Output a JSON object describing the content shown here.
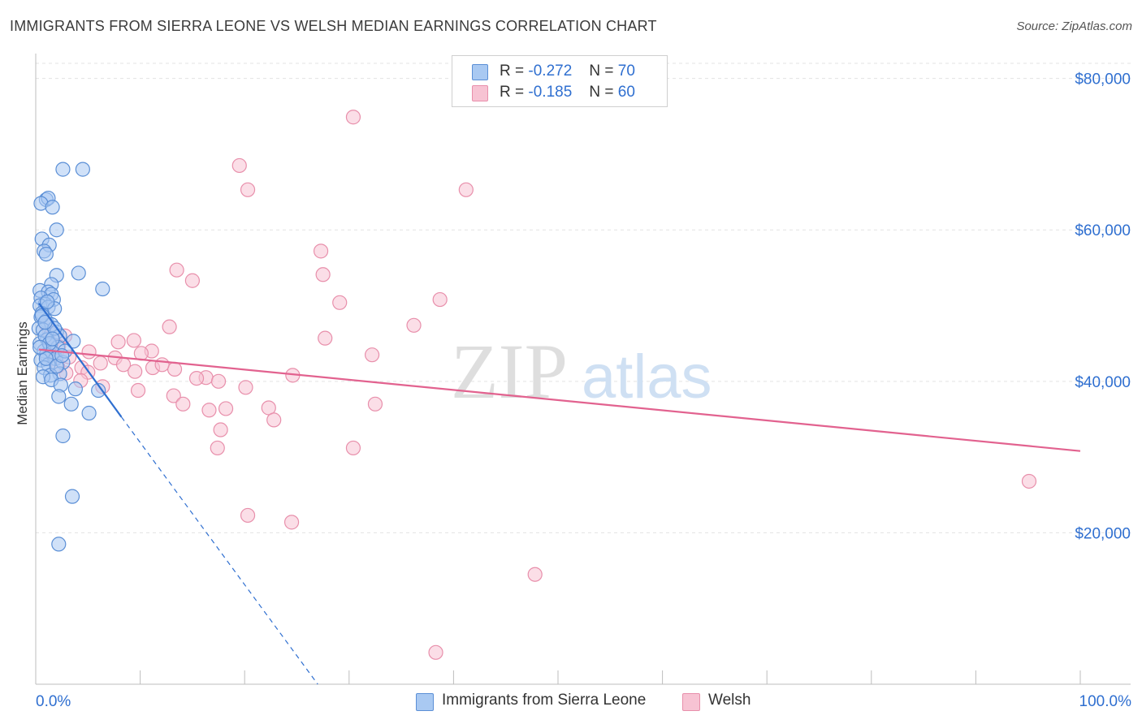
{
  "title": "IMMIGRANTS FROM SIERRA LEONE VS WELSH MEDIAN EARNINGS CORRELATION CHART",
  "source": "Source: ZipAtlas.com",
  "watermark": {
    "zip": "ZIP",
    "atlas": "atlas"
  },
  "legend": {
    "r_label": "R =",
    "n_label": "N =",
    "series": [
      {
        "r": "-0.272",
        "n": "70"
      },
      {
        "r": "-0.185",
        "n": "60"
      }
    ]
  },
  "colors": {
    "blue_fill": "#a9c9f2",
    "blue_stroke": "#5b8fd6",
    "blue_line": "#2f6fd0",
    "pink_fill": "#f7c3d3",
    "pink_stroke": "#e88fab",
    "pink_line": "#e2628f",
    "axis_label": "#2f6fd0",
    "grid": "#e3e3e3"
  },
  "chart_data": {
    "type": "scatter",
    "title": "IMMIGRANTS FROM SIERRA LEONE VS WELSH MEDIAN EARNINGS CORRELATION CHART",
    "xlabel": "",
    "ylabel": "Median Earnings",
    "xlim": [
      0,
      100
    ],
    "ylim": [
      0,
      82000
    ],
    "x_tick_labels": [
      "0.0%",
      "100.0%"
    ],
    "y_ticks": [
      20000,
      40000,
      60000,
      80000
    ],
    "y_tick_labels": [
      "$20,000",
      "$40,000",
      "$60,000",
      "$80,000"
    ],
    "grid": true,
    "legend_position": "top-center",
    "series": [
      {
        "name": "Immigrants from Sierra Leone",
        "color": "#5b8fd6",
        "points": [
          [
            4.5,
            68000
          ],
          [
            2.6,
            68000
          ],
          [
            1.0,
            64000
          ],
          [
            1.2,
            64200
          ],
          [
            0.5,
            63500
          ],
          [
            1.6,
            63000
          ],
          [
            2.0,
            60000
          ],
          [
            0.6,
            58800
          ],
          [
            1.3,
            58000
          ],
          [
            0.8,
            57200
          ],
          [
            1.0,
            56800
          ],
          [
            4.1,
            54300
          ],
          [
            2.0,
            54000
          ],
          [
            1.5,
            52800
          ],
          [
            6.4,
            52200
          ],
          [
            0.4,
            52000
          ],
          [
            1.2,
            51800
          ],
          [
            1.5,
            51500
          ],
          [
            0.5,
            51000
          ],
          [
            1.7,
            50800
          ],
          [
            0.9,
            50200
          ],
          [
            0.4,
            50000
          ],
          [
            1.2,
            49800
          ],
          [
            1.8,
            49600
          ],
          [
            0.6,
            49000
          ],
          [
            0.5,
            48500
          ],
          [
            1.0,
            48000
          ],
          [
            1.5,
            47500
          ],
          [
            0.3,
            47000
          ],
          [
            2.0,
            46500
          ],
          [
            2.3,
            46000
          ],
          [
            0.7,
            46800
          ],
          [
            1.1,
            45500
          ],
          [
            3.6,
            45300
          ],
          [
            0.4,
            45000
          ],
          [
            1.4,
            44800
          ],
          [
            2.1,
            44500
          ],
          [
            0.8,
            44000
          ],
          [
            1.6,
            43800
          ],
          [
            1.0,
            43500
          ],
          [
            1.9,
            43000
          ],
          [
            0.5,
            42800
          ],
          [
            2.6,
            42500
          ],
          [
            1.2,
            42200
          ],
          [
            0.8,
            41800
          ],
          [
            2.3,
            41000
          ],
          [
            1.4,
            40800
          ],
          [
            0.7,
            40600
          ],
          [
            1.5,
            40200
          ],
          [
            2.4,
            39500
          ],
          [
            3.8,
            39000
          ],
          [
            6.0,
            38800
          ],
          [
            2.2,
            38000
          ],
          [
            3.4,
            37000
          ],
          [
            5.1,
            35800
          ],
          [
            2.6,
            32800
          ],
          [
            3.5,
            24800
          ],
          [
            2.2,
            18500
          ],
          [
            0.9,
            46000
          ],
          [
            1.3,
            45000
          ],
          [
            1.0,
            43000
          ],
          [
            2.0,
            42000
          ],
          [
            0.6,
            48700
          ],
          [
            1.8,
            47000
          ],
          [
            2.8,
            44000
          ],
          [
            0.4,
            44500
          ],
          [
            1.1,
            50500
          ],
          [
            0.9,
            47800
          ],
          [
            1.6,
            45600
          ],
          [
            2.5,
            43400
          ]
        ],
        "trend_solid": [
          [
            0.3,
            50300
          ],
          [
            8.2,
            35300
          ]
        ],
        "trend_dashed": [
          [
            8.2,
            35300
          ],
          [
            27.0,
            0
          ]
        ]
      },
      {
        "name": "Welsh",
        "color": "#e88fab",
        "points": [
          [
            30.4,
            74900
          ],
          [
            19.5,
            68500
          ],
          [
            20.3,
            65300
          ],
          [
            41.2,
            65300
          ],
          [
            27.3,
            57200
          ],
          [
            13.5,
            54700
          ],
          [
            15.0,
            53300
          ],
          [
            27.5,
            54100
          ],
          [
            29.1,
            50400
          ],
          [
            38.7,
            50800
          ],
          [
            12.8,
            47200
          ],
          [
            36.2,
            47400
          ],
          [
            27.7,
            45700
          ],
          [
            1.0,
            47500
          ],
          [
            1.3,
            46500
          ],
          [
            2.8,
            46000
          ],
          [
            9.4,
            45400
          ],
          [
            7.9,
            45200
          ],
          [
            1.5,
            45000
          ],
          [
            2.2,
            44600
          ],
          [
            11.1,
            44000
          ],
          [
            5.1,
            43900
          ],
          [
            32.2,
            43500
          ],
          [
            10.1,
            43700
          ],
          [
            1.7,
            43000
          ],
          [
            7.6,
            43100
          ],
          [
            6.2,
            42400
          ],
          [
            8.4,
            42200
          ],
          [
            11.2,
            41800
          ],
          [
            4.4,
            41800
          ],
          [
            5.0,
            41200
          ],
          [
            13.3,
            41600
          ],
          [
            12.1,
            42200
          ],
          [
            9.5,
            41300
          ],
          [
            16.3,
            40500
          ],
          [
            15.4,
            40400
          ],
          [
            24.6,
            40800
          ],
          [
            4.3,
            40100
          ],
          [
            17.5,
            40000
          ],
          [
            2.9,
            41100
          ],
          [
            6.4,
            39300
          ],
          [
            20.1,
            39200
          ],
          [
            9.8,
            38800
          ],
          [
            13.2,
            38100
          ],
          [
            14.1,
            37000
          ],
          [
            16.6,
            36200
          ],
          [
            18.2,
            36400
          ],
          [
            22.3,
            36500
          ],
          [
            32.5,
            37000
          ],
          [
            22.8,
            34900
          ],
          [
            17.7,
            33600
          ],
          [
            17.4,
            31200
          ],
          [
            30.4,
            31200
          ],
          [
            20.3,
            22300
          ],
          [
            24.5,
            21400
          ],
          [
            95.1,
            26800
          ],
          [
            47.8,
            14500
          ],
          [
            38.3,
            4200
          ],
          [
            3.2,
            43200
          ],
          [
            2.1,
            42000
          ]
        ],
        "trend": [
          [
            0.3,
            44200
          ],
          [
            100,
            30800
          ]
        ]
      }
    ]
  },
  "bottom_legend": [
    {
      "label": "Immigrants from Sierra Leone"
    },
    {
      "label": "Welsh"
    }
  ]
}
